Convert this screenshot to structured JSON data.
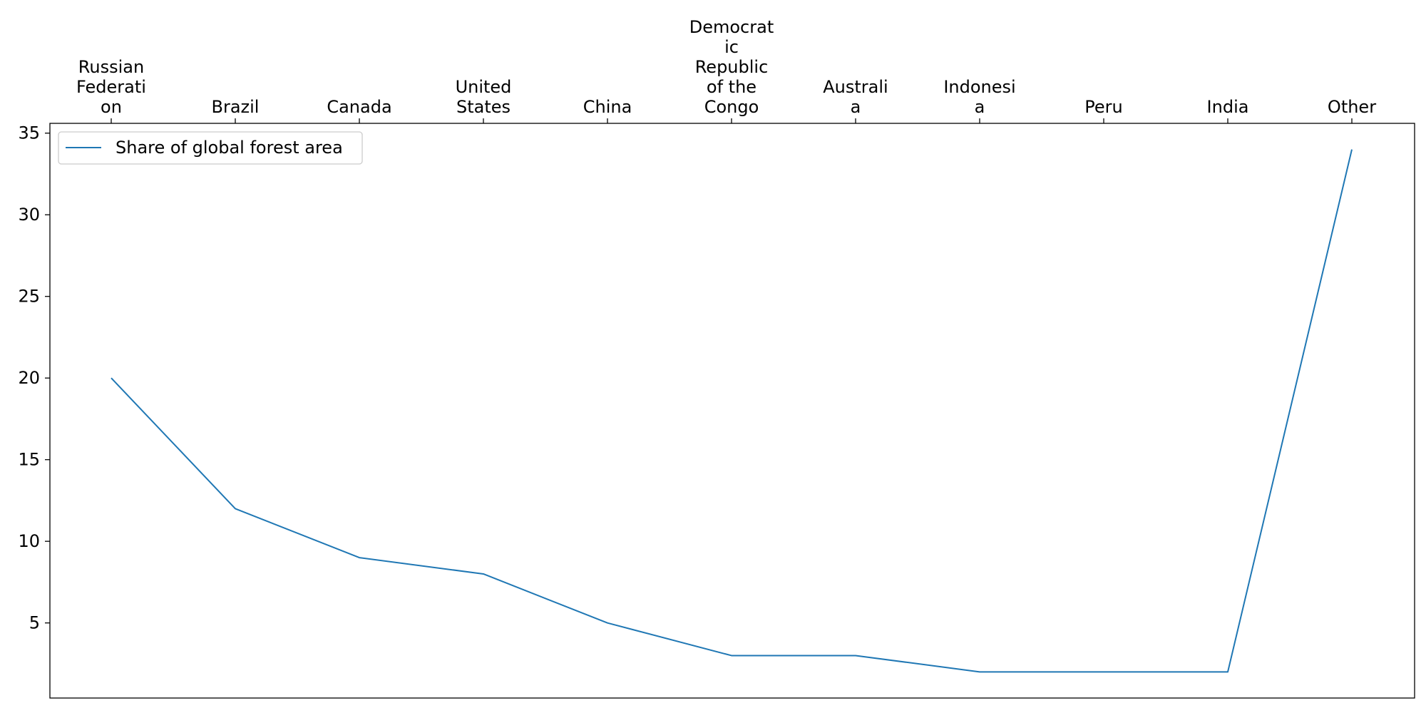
{
  "chart_data": {
    "type": "line",
    "title": "",
    "xlabel": "",
    "ylabel": "",
    "x_axis_position": "top",
    "categories": [
      "Russian\nFederati\non",
      "Brazil",
      "Canada",
      "United\nStates",
      "China",
      "Democrat\nic\nRepublic\nof the\nCongo",
      "Australi\na",
      "Indonesi\na",
      "Peru",
      "India",
      "Other"
    ],
    "series": [
      {
        "name": "Share of global forest area",
        "values": [
          20,
          12,
          9,
          8,
          5,
          3,
          3,
          2,
          2,
          2,
          34
        ],
        "color": "#1f77b4"
      }
    ],
    "yticks": [
      5,
      10,
      15,
      20,
      25,
      30,
      35
    ],
    "ylim": [
      0.4,
      35.6
    ],
    "grid": false,
    "legend_position": "upper-left"
  }
}
